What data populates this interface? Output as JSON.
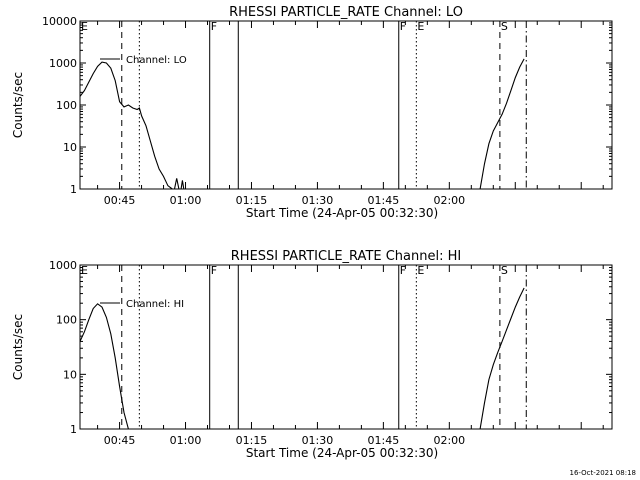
{
  "footer": {
    "timestamp": "16-Oct-2021 08:18"
  },
  "chart_data": [
    {
      "type": "line",
      "title": "RHESSI PARTICLE_RATE Channel: LO",
      "xlabel": "Start Time (24-Apr-05 00:32:30)",
      "ylabel": "Counts/sec",
      "yscale": "log",
      "xlim": [
        "00:36",
        "02:37"
      ],
      "ylim": [
        1,
        10000
      ],
      "yticks": [
        {
          "value": 1,
          "label": "1"
        },
        {
          "value": 10,
          "label": "10"
        },
        {
          "value": 100,
          "label": "100"
        },
        {
          "value": 1000,
          "label": "1000"
        },
        {
          "value": 10000,
          "label": "10000"
        }
      ],
      "xticks": [
        {
          "value": "00:45",
          "label": "00:45"
        },
        {
          "value": "01:00",
          "label": "01:00"
        },
        {
          "value": "01:15",
          "label": "01:15"
        },
        {
          "value": "01:30",
          "label": "01:30"
        },
        {
          "value": "01:45",
          "label": "01:45"
        },
        {
          "value": "02:00",
          "label": "02:00"
        }
      ],
      "legend": {
        "placement": "top-left",
        "label": "Channel: LO"
      },
      "series": [
        {
          "name": "Channel: LO",
          "segments": [
            [
              [
                "00:36",
                160
              ],
              [
                "00:37",
                220
              ],
              [
                "00:38",
                350
              ],
              [
                "00:39",
                560
              ],
              [
                "00:40",
                830
              ],
              [
                "00:41",
                1050
              ],
              [
                "00:42",
                1000
              ],
              [
                "00:43",
                750
              ],
              [
                "00:44",
                380
              ],
              [
                "00:45",
                120
              ],
              [
                "00:46",
                90
              ],
              [
                "00:47",
                100
              ],
              [
                "00:48",
                85
              ],
              [
                "00:49",
                78
              ],
              [
                "00:49.5",
                85
              ],
              [
                "00:50",
                55
              ],
              [
                "00:51",
                32
              ],
              [
                "00:52",
                14
              ],
              [
                "00:53",
                6
              ],
              [
                "00:54",
                3
              ],
              [
                "00:55",
                2
              ],
              [
                "00:56",
                1.2
              ],
              [
                "00:57",
                1
              ]
            ],
            [
              [
                "00:57.5",
                1
              ],
              [
                "00:58",
                1.8
              ],
              [
                "00:58.5",
                1
              ]
            ],
            [
              [
                "00:59",
                1
              ],
              [
                "00:59.3",
                1.6
              ],
              [
                "00:59.6",
                1
              ]
            ],
            [
              [
                "02:07",
                1
              ],
              [
                "02:08",
                4
              ],
              [
                "02:09",
                12
              ],
              [
                "02:10",
                24
              ],
              [
                "02:11",
                38
              ],
              [
                "02:12",
                60
              ],
              [
                "02:13",
                110
              ],
              [
                "02:14",
                220
              ],
              [
                "02:15",
                450
              ],
              [
                "02:16",
                800
              ],
              [
                "02:17",
                1250
              ]
            ]
          ]
        }
      ],
      "markers": [
        {
          "label": "E",
          "time": "00:36",
          "style": "none"
        },
        {
          "label": "",
          "time": "00:45.5",
          "style": "dashed"
        },
        {
          "label": "",
          "time": "00:49.5",
          "style": "dotted"
        },
        {
          "label": "F",
          "time": "01:05.5",
          "style": "solid"
        },
        {
          "label": "",
          "time": "01:12",
          "style": "solid"
        },
        {
          "label": "F",
          "time": "01:48.5",
          "style": "solid"
        },
        {
          "label": "E",
          "time": "01:52.5",
          "style": "dotted"
        },
        {
          "label": "S",
          "time": "02:11.5",
          "style": "dashed"
        },
        {
          "label": "",
          "time": "02:17.5",
          "style": "dashdot"
        }
      ]
    },
    {
      "type": "line",
      "title": "RHESSI PARTICLE_RATE Channel: HI",
      "xlabel": "Start Time (24-Apr-05 00:32:30)",
      "ylabel": "Counts/sec",
      "yscale": "log",
      "xlim": [
        "00:36",
        "02:37"
      ],
      "ylim": [
        1,
        1000
      ],
      "yticks": [
        {
          "value": 1,
          "label": "1"
        },
        {
          "value": 10,
          "label": "10"
        },
        {
          "value": 100,
          "label": "100"
        },
        {
          "value": 1000,
          "label": "1000"
        }
      ],
      "xticks": [
        {
          "value": "00:45",
          "label": "00:45"
        },
        {
          "value": "01:00",
          "label": "01:00"
        },
        {
          "value": "01:15",
          "label": "01:15"
        },
        {
          "value": "01:30",
          "label": "01:30"
        },
        {
          "value": "01:45",
          "label": "01:45"
        },
        {
          "value": "02:00",
          "label": "02:00"
        }
      ],
      "legend": {
        "placement": "top-left",
        "label": "Channel: HI"
      },
      "series": [
        {
          "name": "Channel: HI",
          "segments": [
            [
              [
                "00:36",
                40
              ],
              [
                "00:37",
                60
              ],
              [
                "00:38",
                100
              ],
              [
                "00:39",
                160
              ],
              [
                "00:40",
                195
              ],
              [
                "00:41",
                170
              ],
              [
                "00:42",
                110
              ],
              [
                "00:43",
                55
              ],
              [
                "00:44",
                20
              ],
              [
                "00:45",
                6
              ],
              [
                "00:46",
                2
              ],
              [
                "00:47",
                1
              ]
            ],
            [
              [
                "02:07",
                1
              ],
              [
                "02:08",
                3
              ],
              [
                "02:09",
                8
              ],
              [
                "02:10",
                15
              ],
              [
                "02:11",
                25
              ],
              [
                "02:12",
                40
              ],
              [
                "02:13",
                65
              ],
              [
                "02:14",
                105
              ],
              [
                "02:15",
                170
              ],
              [
                "02:16",
                260
              ],
              [
                "02:17",
                380
              ]
            ]
          ]
        }
      ],
      "markers": [
        {
          "label": "E",
          "time": "00:36",
          "style": "none"
        },
        {
          "label": "",
          "time": "00:45.5",
          "style": "dashed"
        },
        {
          "label": "",
          "time": "00:49.5",
          "style": "dotted"
        },
        {
          "label": "F",
          "time": "01:05.5",
          "style": "solid"
        },
        {
          "label": "",
          "time": "01:12",
          "style": "solid"
        },
        {
          "label": "F",
          "time": "01:48.5",
          "style": "solid"
        },
        {
          "label": "E",
          "time": "01:52.5",
          "style": "dotted"
        },
        {
          "label": "S",
          "time": "02:11.5",
          "style": "dashed"
        },
        {
          "label": "",
          "time": "02:17.5",
          "style": "dashdot"
        }
      ]
    }
  ]
}
